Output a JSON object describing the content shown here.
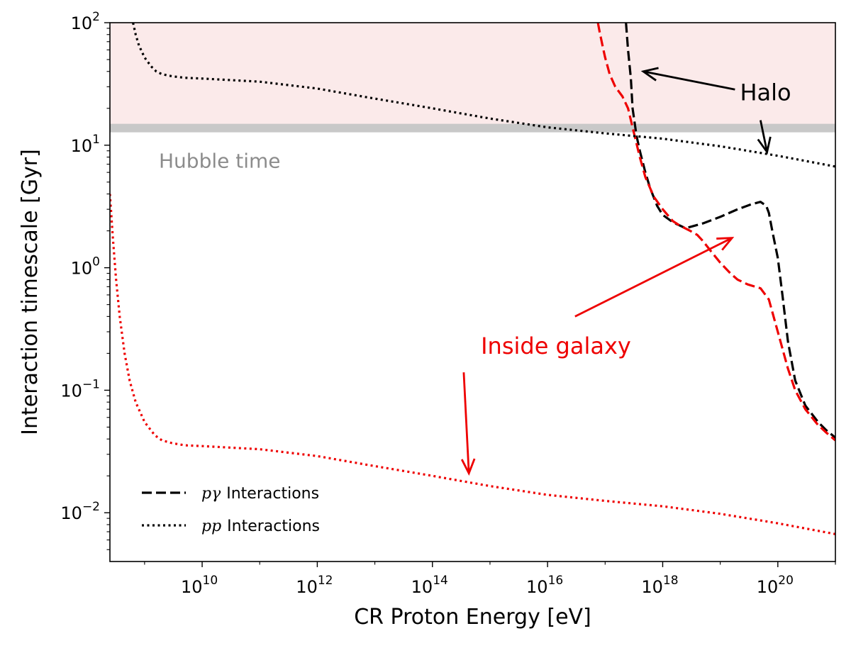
{
  "chart_data": {
    "type": "line",
    "xscale": "log",
    "yscale": "log",
    "xlabel": "CR Proton Energy [eV]",
    "ylabel": "Interaction timescale [Gyr]",
    "xlim": [
      250000000.0,
      1e+21
    ],
    "ylim": [
      0.004,
      100
    ],
    "x_ticks": [
      {
        "base": "10",
        "exp": "10",
        "value": 10000000000.0
      },
      {
        "base": "10",
        "exp": "12",
        "value": 1000000000000.0
      },
      {
        "base": "10",
        "exp": "14",
        "value": 100000000000000.0
      },
      {
        "base": "10",
        "exp": "16",
        "value": 1e+16
      },
      {
        "base": "10",
        "exp": "18",
        "value": 1e+18
      },
      {
        "base": "10",
        "exp": "20",
        "value": 1e+20
      }
    ],
    "y_ticks": [
      {
        "base": "10",
        "exp": "−2",
        "value": 0.01
      },
      {
        "base": "10",
        "exp": "−1",
        "value": 0.1
      },
      {
        "base": "10",
        "exp": "0",
        "value": 1
      },
      {
        "base": "10",
        "exp": "1",
        "value": 10
      },
      {
        "base": "10",
        "exp": "2",
        "value": 100
      }
    ],
    "hubble_time": {
      "label": "Hubble time",
      "value": 13.8,
      "band_color": "#c8c8c8",
      "label_color": "#8c8c8c"
    },
    "halo_region": {
      "ymin": 13.8,
      "ymax": 100,
      "color": "#fbeaea"
    },
    "series": [
      {
        "name": "Halo pγ Interactions",
        "style": "dashed",
        "color": "#000000",
        "points": [
          [
            2.3e+17,
            100
          ],
          [
            2.5e+17,
            60
          ],
          [
            2.8e+17,
            35
          ],
          [
            3e+17,
            20
          ],
          [
            3.5e+17,
            12
          ],
          [
            4e+17,
            9
          ],
          [
            5e+17,
            6
          ],
          [
            6e+17,
            4.5
          ],
          [
            8e+17,
            3.2
          ],
          [
            1e+18,
            2.7
          ],
          [
            1.5e+18,
            2.35
          ],
          [
            2.5e+18,
            2.1
          ],
          [
            5e+18,
            2.3
          ],
          [
            1e+19,
            2.6
          ],
          [
            2e+19,
            3
          ],
          [
            3.5e+19,
            3.3
          ],
          [
            5e+19,
            3.45
          ],
          [
            6.3e+19,
            3.2
          ],
          [
            7e+19,
            2.8
          ],
          [
            8e+19,
            2
          ],
          [
            1e+20,
            1.2
          ],
          [
            1.2e+20,
            0.6
          ],
          [
            1.5e+20,
            0.25
          ],
          [
            2e+20,
            0.12
          ],
          [
            3e+20,
            0.075
          ],
          [
            5e+20,
            0.055
          ],
          [
            7e+20,
            0.047
          ],
          [
            1e+21,
            0.041
          ]
        ]
      },
      {
        "name": "Inside galaxy pγ Interactions",
        "style": "dashed",
        "color": "#ee0000",
        "points": [
          [
            7.5e+16,
            100
          ],
          [
            8e+16,
            85
          ],
          [
            9e+16,
            65
          ],
          [
            1e+17,
            52
          ],
          [
            1.2e+17,
            38
          ],
          [
            1.5e+17,
            30
          ],
          [
            2e+17,
            25
          ],
          [
            2.5e+17,
            20
          ],
          [
            3e+17,
            14
          ],
          [
            4e+17,
            8
          ],
          [
            5e+17,
            5.5
          ],
          [
            7e+17,
            3.8
          ],
          [
            1e+18,
            3
          ],
          [
            1.5e+18,
            2.4
          ],
          [
            2e+18,
            2.2
          ],
          [
            3e+18,
            2
          ],
          [
            4e+18,
            1.85
          ],
          [
            5e+18,
            1.65
          ],
          [
            7e+18,
            1.35
          ],
          [
            1e+19,
            1.1
          ],
          [
            1.5e+19,
            0.9
          ],
          [
            2e+19,
            0.8
          ],
          [
            3e+19,
            0.73
          ],
          [
            5e+19,
            0.68
          ],
          [
            7e+19,
            0.55
          ],
          [
            1e+20,
            0.3
          ],
          [
            1.5e+20,
            0.15
          ],
          [
            2e+20,
            0.1
          ],
          [
            3e+20,
            0.07
          ],
          [
            5e+20,
            0.052
          ],
          [
            7e+20,
            0.045
          ],
          [
            1e+21,
            0.039
          ]
        ]
      },
      {
        "name": "Halo pp Interactions",
        "style": "dotted",
        "color": "#000000",
        "points": [
          [
            630000000.0,
            100
          ],
          [
            700000000.0,
            80
          ],
          [
            800000000.0,
            65
          ],
          [
            1000000000.0,
            52
          ],
          [
            1300000000.0,
            44
          ],
          [
            1600000000.0,
            40
          ],
          [
            2000000000.0,
            38
          ],
          [
            3000000000.0,
            36.5
          ],
          [
            5000000000.0,
            35.5
          ],
          [
            10000000000.0,
            35
          ],
          [
            100000000000.0,
            33
          ],
          [
            1000000000000.0,
            29
          ],
          [
            10000000000000.0,
            24
          ],
          [
            100000000000000.0,
            20
          ],
          [
            1000000000000000.0,
            16.5
          ],
          [
            1e+16,
            14
          ],
          [
            1e+17,
            12.5
          ],
          [
            1e+18,
            11.3
          ],
          [
            1e+19,
            9.8
          ],
          [
            1e+20,
            8.2
          ],
          [
            1e+21,
            6.7
          ]
        ]
      },
      {
        "name": "Inside galaxy pp Interactions",
        "style": "dotted",
        "color": "#ee0000",
        "points": [
          [
            250000000.0,
            4
          ],
          [
            280000000.0,
            1.8
          ],
          [
            320000000.0,
            0.8
          ],
          [
            370000000.0,
            0.4
          ],
          [
            450000000.0,
            0.2
          ],
          [
            550000000.0,
            0.12
          ],
          [
            700000000.0,
            0.08
          ],
          [
            1000000000.0,
            0.055
          ],
          [
            1500000000.0,
            0.043
          ],
          [
            2000000000.0,
            0.039
          ],
          [
            3000000000.0,
            0.037
          ],
          [
            5000000000.0,
            0.0355
          ],
          [
            10000000000.0,
            0.035
          ],
          [
            100000000000.0,
            0.033
          ],
          [
            1000000000000.0,
            0.029
          ],
          [
            10000000000000.0,
            0.024
          ],
          [
            100000000000000.0,
            0.02
          ],
          [
            1000000000000000.0,
            0.0165
          ],
          [
            1e+16,
            0.014
          ],
          [
            1e+17,
            0.0125
          ],
          [
            1e+18,
            0.0113
          ],
          [
            1e+19,
            0.0098
          ],
          [
            1e+20,
            0.0082
          ],
          [
            1e+21,
            0.0067
          ]
        ]
      }
    ],
    "annotations": [
      {
        "id": "halo",
        "text": "Halo",
        "color": "#000000",
        "x": 2.2e+19,
        "y": 27,
        "anchor": "start",
        "size": 32,
        "arrows": [
          {
            "from": [
              1.8e+19,
              28.5
            ],
            "to": [
              4.6e+17,
              40
            ]
          },
          {
            "from": [
              5e+19,
              16
            ],
            "to": [
              6.5e+19,
              8.8
            ]
          }
        ]
      },
      {
        "id": "inside-galaxy",
        "text": "Inside galaxy",
        "color": "#ee0000",
        "x": 1.4e+16,
        "y": 0.23,
        "anchor": "middle",
        "size": 32,
        "arrows": [
          {
            "from": [
              3e+16,
              0.4
            ],
            "to": [
              1.6e+19,
              1.75
            ]
          },
          {
            "from": [
              350000000000000.0,
              0.14
            ],
            "to": [
              430000000000000.0,
              0.021
            ]
          }
        ]
      }
    ],
    "legend": {
      "placement": "bottom-left",
      "entries": [
        {
          "style": "dashed",
          "math": "pγ",
          "text": "Interactions"
        },
        {
          "style": "dotted",
          "math": "pp",
          "text": "Interactions"
        }
      ]
    }
  }
}
